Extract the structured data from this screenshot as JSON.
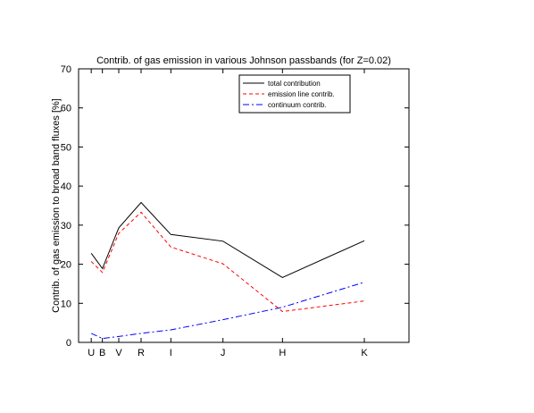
{
  "chart_data": {
    "type": "line",
    "title": "Contrib. of gas emission in various Johnson passbands (for Z=0.02)",
    "xlabel": "",
    "ylabel": "Contrib. of gas emission to broad band fluxes [%]",
    "ylim": [
      0,
      70
    ],
    "yticks": [
      0,
      10,
      20,
      30,
      40,
      50,
      60,
      70
    ],
    "x_tick_labels": [
      "U",
      "B",
      "V",
      "R",
      "I",
      "J",
      "H",
      "K"
    ],
    "x_tick_positions": [
      0.365,
      0.44,
      0.55,
      0.7,
      0.9,
      1.25,
      1.65,
      2.2
    ],
    "xlim": [
      0.28,
      2.5
    ],
    "grid": false,
    "legend_position": "top-right",
    "series": [
      {
        "name": "total contribution",
        "color": "#000000",
        "dash": "solid",
        "values": [
          22.8,
          18.9,
          29.3,
          35.8,
          27.6,
          25.9,
          16.6,
          26.0
        ]
      },
      {
        "name": "emission line contrib.",
        "color": "#ff0000",
        "dash": "dashed",
        "values": [
          20.7,
          17.9,
          27.9,
          33.3,
          24.4,
          20.1,
          7.9,
          10.6
        ]
      },
      {
        "name": "continuum contrib.",
        "color": "#0000ff",
        "dash": "dashdot",
        "values": [
          2.3,
          1.0,
          1.5,
          2.3,
          3.2,
          5.8,
          9.0,
          15.4
        ]
      }
    ]
  }
}
